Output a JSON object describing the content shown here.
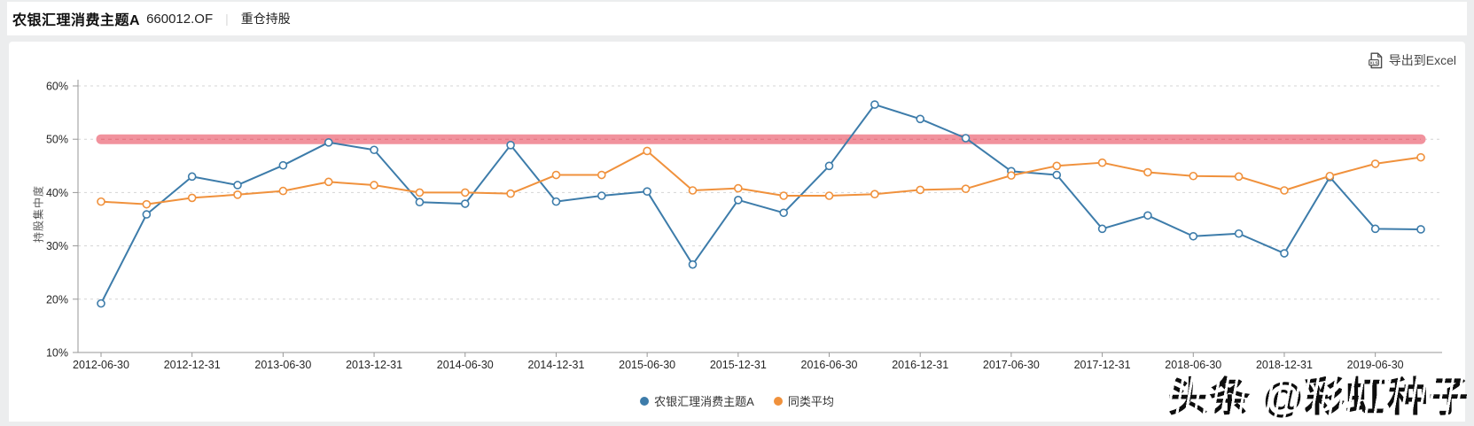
{
  "header": {
    "fund_name": "农银汇理消费主题A",
    "fund_code": "660012.OF",
    "divider": "|",
    "section": "重仓持股"
  },
  "toolbar": {
    "export_label": "导出到Excel",
    "export_icon": "xls-file-icon"
  },
  "watermark": "头条 @彩虹种子",
  "colors": {
    "page_bg": "#ecedee",
    "card_bg": "#ffffff",
    "axis": "#979797",
    "grid": "#d4d4d4",
    "axis_label": "#262626"
  },
  "chart_data": {
    "type": "line",
    "title": "",
    "xlabel": "",
    "ylabel": "持股集中度",
    "ylim": [
      10,
      60
    ],
    "y_ticks": [
      "10%",
      "20%",
      "30%",
      "40%",
      "50%",
      "60%"
    ],
    "grid": "horizontal-dashed",
    "legend_position": "bottom",
    "x_axis_visible_labels": [
      "2012-06-30",
      "2012-12-31",
      "2013-06-30",
      "2013-12-31",
      "2014-06-30",
      "2014-12-31",
      "2015-06-30",
      "2015-12-31",
      "2016-06-30",
      "2016-12-31",
      "2017-06-30",
      "2017-12-31",
      "2018-06-30",
      "2018-12-31",
      "2019-06-30"
    ],
    "categories": [
      "2012-06-30",
      "2012-09-30",
      "2012-12-31",
      "2013-03-31",
      "2013-06-30",
      "2013-09-30",
      "2013-12-31",
      "2014-03-31",
      "2014-06-30",
      "2014-09-30",
      "2014-12-31",
      "2015-03-31",
      "2015-06-30",
      "2015-09-30",
      "2015-12-31",
      "2016-03-31",
      "2016-06-30",
      "2016-09-30",
      "2016-12-31",
      "2017-03-31",
      "2017-06-30",
      "2017-09-30",
      "2017-12-31",
      "2018-03-31",
      "2018-06-30",
      "2018-09-30",
      "2018-12-31",
      "2019-03-31",
      "2019-06-30",
      "2019-09-30"
    ],
    "series": [
      {
        "name": "农银汇理消费主题A",
        "color": "#3d7caa",
        "marker": "open-circle",
        "values": [
          19.2,
          35.9,
          43.0,
          41.4,
          45.1,
          49.4,
          48.0,
          38.2,
          37.9,
          48.9,
          38.3,
          39.4,
          40.2,
          26.5,
          38.6,
          36.2,
          45.0,
          56.5,
          53.8,
          50.2,
          44.0,
          43.3,
          33.2,
          35.7,
          31.8,
          32.3,
          28.6,
          42.9,
          33.2,
          33.1
        ]
      },
      {
        "name": "同类平均",
        "color": "#f0913c",
        "marker": "open-circle",
        "values": [
          38.3,
          37.8,
          39.0,
          39.6,
          40.3,
          42.0,
          41.4,
          40.0,
          40.0,
          39.8,
          43.3,
          43.3,
          47.8,
          40.4,
          40.8,
          39.4,
          39.4,
          39.7,
          40.5,
          40.7,
          43.2,
          45.0,
          45.6,
          43.8,
          43.1,
          43.0,
          40.4,
          43.1,
          45.4,
          46.6
        ]
      }
    ],
    "reference_band": {
      "value": 50,
      "color": "#f1929d",
      "dash_color": "#e2737f",
      "thickness_px": 11
    }
  }
}
